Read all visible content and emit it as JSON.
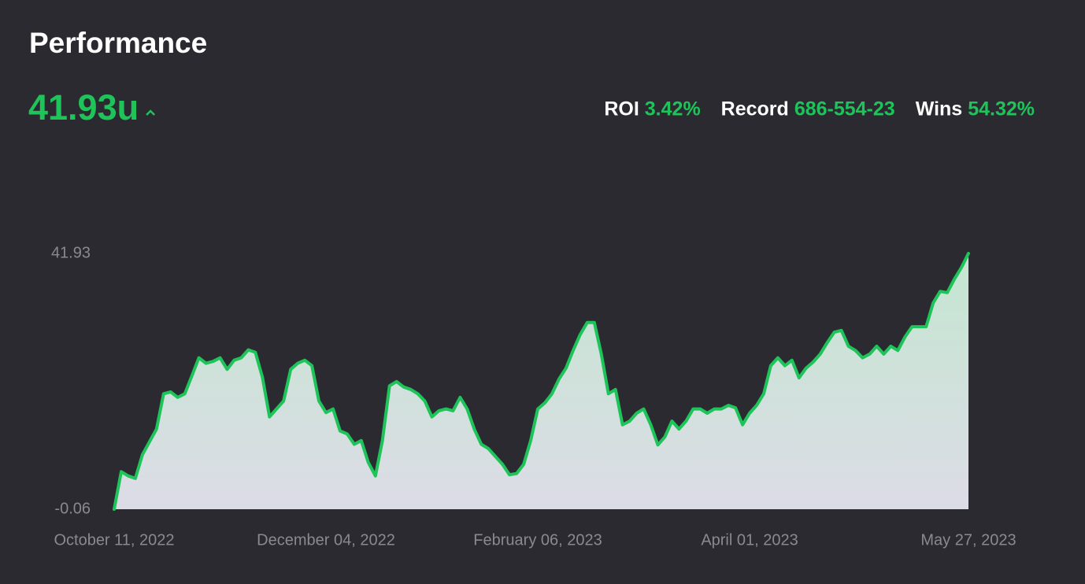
{
  "header": {
    "title": "Performance",
    "total": "41.93u",
    "stats": [
      {
        "label": "ROI",
        "value": "3.42%"
      },
      {
        "label": "Record",
        "value": "686-554-23"
      },
      {
        "label": "Wins",
        "value": "54.32%"
      }
    ]
  },
  "chart_data": {
    "type": "area",
    "color": "#1ec45a",
    "values": [
      -0.06,
      6.1,
      5.4,
      5.0,
      8.9,
      11.0,
      13.1,
      18.9,
      19.2,
      18.3,
      18.9,
      21.8,
      24.8,
      23.9,
      24.2,
      24.8,
      22.9,
      24.4,
      24.8,
      26.1,
      25.7,
      21.6,
      15.1,
      16.4,
      17.7,
      22.9,
      23.9,
      24.4,
      23.5,
      17.7,
      15.8,
      16.4,
      12.8,
      12.3,
      10.6,
      11.2,
      7.6,
      5.4,
      11.2,
      20.2,
      20.9,
      20.0,
      19.6,
      18.9,
      17.7,
      15.1,
      16.1,
      16.4,
      16.1,
      18.3,
      16.4,
      13.1,
      10.6,
      9.9,
      8.6,
      7.3,
      5.6,
      5.8,
      7.3,
      11.2,
      16.4,
      17.4,
      18.9,
      21.3,
      23.1,
      26.0,
      28.6,
      30.6,
      30.6,
      25.4,
      18.9,
      19.6,
      13.8,
      14.4,
      15.7,
      16.4,
      13.8,
      10.5,
      11.8,
      14.4,
      13.1,
      14.4,
      16.4,
      16.4,
      15.7,
      16.4,
      16.4,
      17.0,
      16.6,
      13.8,
      15.7,
      17.0,
      18.9,
      23.5,
      24.8,
      23.5,
      24.4,
      21.5,
      23.1,
      24.1,
      25.4,
      27.3,
      29.0,
      29.3,
      26.7,
      26.0,
      24.8,
      25.4,
      26.7,
      25.4,
      26.7,
      26.0,
      28.2,
      29.9,
      29.9,
      29.9,
      33.8,
      35.7,
      35.5,
      37.7,
      39.6,
      41.93
    ],
    "xticks": [
      {
        "value": 0,
        "label": "October 11, 2022"
      },
      {
        "value": 30,
        "label": "December 04, 2022"
      },
      {
        "value": 60,
        "label": "February 06, 2023"
      },
      {
        "value": 90,
        "label": "April 01, 2023"
      },
      {
        "value": 121,
        "label": "May 27, 2023"
      }
    ],
    "ylim": [
      -0.06,
      41.93
    ],
    "yticks": [
      41.93,
      -0.06
    ]
  }
}
